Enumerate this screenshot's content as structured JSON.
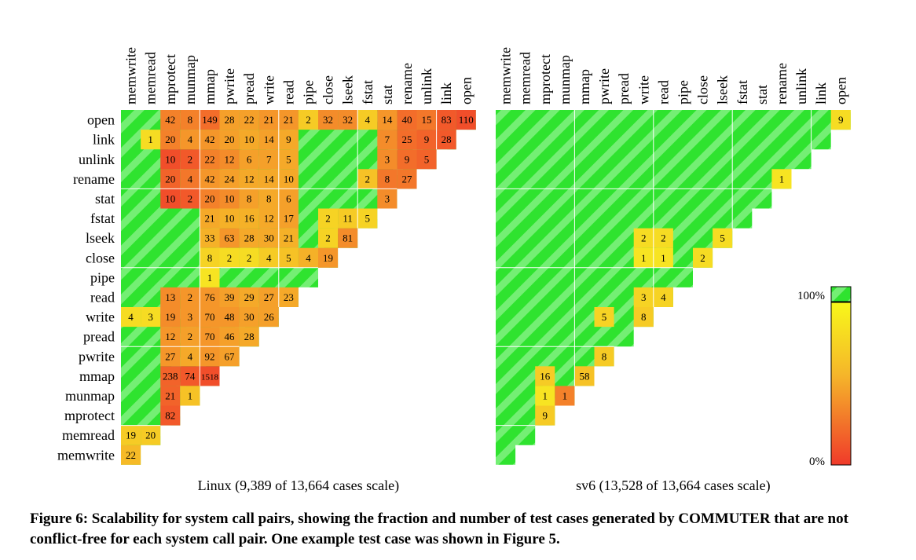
{
  "figure": {
    "caption": "Figure 6: Scalability for system call pairs, showing the fraction and number of test cases generated by COMMUTER that are not conflict-free for each system call pair. One example test case was shown in Figure 5."
  },
  "chart_data": [
    {
      "type": "heatmap",
      "title": "Linux (9,389 of 13,664 cases scale)",
      "column_labels": [
        "memwrite",
        "memread",
        "mprotect",
        "munmap",
        "mmap",
        "pwrite",
        "pread",
        "write",
        "read",
        "pipe",
        "close",
        "lseek",
        "fstat",
        "stat",
        "rename",
        "unlink",
        "link",
        "open"
      ],
      "row_labels": [
        "open",
        "link",
        "unlink",
        "rename",
        "stat",
        "fstat",
        "lseek",
        "close",
        "pipe",
        "read",
        "write",
        "pread",
        "pwrite",
        "mmap",
        "munmap",
        "mprotect",
        "memread",
        "memwrite"
      ],
      "cell_text_meaning": "number of test cases that are not conflict-free",
      "color_meaning": "fraction of test cases that scale (0% red to 100% green)",
      "cells": [
        [
          "open",
          "mprotect",
          "42",
          0.35
        ],
        [
          "open",
          "munmap",
          "8",
          0.35
        ],
        [
          "open",
          "mmap",
          "149",
          0.25
        ],
        [
          "open",
          "pwrite",
          "28",
          0.5
        ],
        [
          "open",
          "pread",
          "22",
          0.5
        ],
        [
          "open",
          "write",
          "21",
          0.45
        ],
        [
          "open",
          "read",
          "21",
          0.45
        ],
        [
          "open",
          "pipe",
          "2",
          0.75
        ],
        [
          "open",
          "close",
          "32",
          0.4
        ],
        [
          "open",
          "lseek",
          "32",
          0.4
        ],
        [
          "open",
          "fstat",
          "4",
          0.75
        ],
        [
          "open",
          "stat",
          "14",
          0.45
        ],
        [
          "open",
          "rename",
          "40",
          0.25
        ],
        [
          "open",
          "unlink",
          "15",
          0.3
        ],
        [
          "open",
          "link",
          "83",
          0.15
        ],
        [
          "open",
          "open",
          "110",
          0.1
        ],
        [
          "link",
          "memread",
          "1",
          0.85
        ],
        [
          "link",
          "mprotect",
          "20",
          0.35
        ],
        [
          "link",
          "munmap",
          "4",
          0.45
        ],
        [
          "link",
          "mmap",
          "42",
          0.45
        ],
        [
          "link",
          "pwrite",
          "20",
          0.5
        ],
        [
          "link",
          "pread",
          "10",
          0.55
        ],
        [
          "link",
          "write",
          "14",
          0.5
        ],
        [
          "link",
          "read",
          "9",
          0.55
        ],
        [
          "link",
          "stat",
          "7",
          0.4
        ],
        [
          "link",
          "rename",
          "25",
          0.25
        ],
        [
          "link",
          "unlink",
          "9",
          0.2
        ],
        [
          "link",
          "link",
          "28",
          0.15
        ],
        [
          "unlink",
          "mprotect",
          "10",
          0.1
        ],
        [
          "unlink",
          "munmap",
          "2",
          0.15
        ],
        [
          "unlink",
          "mmap",
          "22",
          0.35
        ],
        [
          "unlink",
          "pwrite",
          "12",
          0.4
        ],
        [
          "unlink",
          "pread",
          "6",
          0.5
        ],
        [
          "unlink",
          "write",
          "7",
          0.5
        ],
        [
          "unlink",
          "read",
          "5",
          0.55
        ],
        [
          "unlink",
          "stat",
          "3",
          0.4
        ],
        [
          "unlink",
          "rename",
          "9",
          0.25
        ],
        [
          "unlink",
          "unlink",
          "5",
          0.2
        ],
        [
          "rename",
          "mprotect",
          "20",
          0.2
        ],
        [
          "rename",
          "munmap",
          "4",
          0.3
        ],
        [
          "rename",
          "mmap",
          "42",
          0.45
        ],
        [
          "rename",
          "pwrite",
          "24",
          0.5
        ],
        [
          "rename",
          "pread",
          "12",
          0.55
        ],
        [
          "rename",
          "write",
          "14",
          0.55
        ],
        [
          "rename",
          "read",
          "10",
          0.55
        ],
        [
          "rename",
          "fstat",
          "2",
          0.7
        ],
        [
          "rename",
          "stat",
          "8",
          0.3
        ],
        [
          "rename",
          "rename",
          "27",
          0.3
        ],
        [
          "stat",
          "mprotect",
          "10",
          0.1
        ],
        [
          "stat",
          "munmap",
          "2",
          0.15
        ],
        [
          "stat",
          "mmap",
          "20",
          0.35
        ],
        [
          "stat",
          "pwrite",
          "10",
          0.4
        ],
        [
          "stat",
          "pread",
          "8",
          0.5
        ],
        [
          "stat",
          "write",
          "8",
          0.55
        ],
        [
          "stat",
          "read",
          "6",
          0.5
        ],
        [
          "stat",
          "stat",
          "3",
          0.4
        ],
        [
          "fstat",
          "mmap",
          "21",
          0.55
        ],
        [
          "fstat",
          "pwrite",
          "10",
          0.6
        ],
        [
          "fstat",
          "pread",
          "16",
          0.6
        ],
        [
          "fstat",
          "write",
          "12",
          0.55
        ],
        [
          "fstat",
          "read",
          "17",
          0.5
        ],
        [
          "fstat",
          "close",
          "2",
          0.8
        ],
        [
          "fstat",
          "lseek",
          "11",
          0.75
        ],
        [
          "fstat",
          "fstat",
          "5",
          0.8
        ],
        [
          "lseek",
          "mmap",
          "33",
          0.6
        ],
        [
          "lseek",
          "pwrite",
          "63",
          0.45
        ],
        [
          "lseek",
          "pread",
          "28",
          0.55
        ],
        [
          "lseek",
          "write",
          "30",
          0.55
        ],
        [
          "lseek",
          "read",
          "21",
          0.6
        ],
        [
          "lseek",
          "close",
          "2",
          0.8
        ],
        [
          "lseek",
          "lseek",
          "81",
          0.4
        ],
        [
          "close",
          "mmap",
          "8",
          0.8
        ],
        [
          "close",
          "pwrite",
          "2",
          0.85
        ],
        [
          "close",
          "pread",
          "2",
          0.85
        ],
        [
          "close",
          "write",
          "4",
          0.75
        ],
        [
          "close",
          "read",
          "5",
          0.7
        ],
        [
          "close",
          "pipe",
          "4",
          0.6
        ],
        [
          "close",
          "close",
          "19",
          0.45
        ],
        [
          "pipe",
          "mmap",
          "1",
          0.9
        ],
        [
          "read",
          "mprotect",
          "13",
          0.4
        ],
        [
          "read",
          "munmap",
          "2",
          0.45
        ],
        [
          "read",
          "mmap",
          "76",
          0.45
        ],
        [
          "read",
          "pwrite",
          "39",
          0.5
        ],
        [
          "read",
          "pread",
          "29",
          0.55
        ],
        [
          "read",
          "write",
          "27",
          0.5
        ],
        [
          "read",
          "read",
          "23",
          0.55
        ],
        [
          "write",
          "memwrite",
          "4",
          0.85
        ],
        [
          "write",
          "memread",
          "3",
          0.85
        ],
        [
          "write",
          "mprotect",
          "19",
          0.4
        ],
        [
          "write",
          "munmap",
          "3",
          0.45
        ],
        [
          "write",
          "mmap",
          "70",
          0.45
        ],
        [
          "write",
          "pwrite",
          "48",
          0.45
        ],
        [
          "write",
          "pread",
          "30",
          0.5
        ],
        [
          "write",
          "write",
          "26",
          0.5
        ],
        [
          "pread",
          "mprotect",
          "12",
          0.45
        ],
        [
          "pread",
          "munmap",
          "2",
          0.5
        ],
        [
          "pread",
          "mmap",
          "70",
          0.45
        ],
        [
          "pread",
          "pwrite",
          "46",
          0.5
        ],
        [
          "pread",
          "pread",
          "28",
          0.55
        ],
        [
          "pwrite",
          "mprotect",
          "27",
          0.45
        ],
        [
          "pwrite",
          "munmap",
          "4",
          0.55
        ],
        [
          "pwrite",
          "mmap",
          "92",
          0.45
        ],
        [
          "pwrite",
          "pwrite",
          "67",
          0.5
        ],
        [
          "mmap",
          "mprotect",
          "238",
          0.2
        ],
        [
          "mmap",
          "munmap",
          "74",
          0.15
        ],
        [
          "mmap",
          "mmap",
          "1518",
          0.1
        ],
        [
          "munmap",
          "mprotect",
          "21",
          0.2
        ],
        [
          "munmap",
          "munmap",
          "1",
          0.7
        ],
        [
          "mprotect",
          "mprotect",
          "82",
          0.15
        ],
        [
          "memread",
          "memwrite",
          "19",
          0.75
        ],
        [
          "memread",
          "memread",
          "20",
          0.75
        ],
        [
          "memwrite",
          "memwrite",
          "22",
          0.65
        ]
      ]
    },
    {
      "type": "heatmap",
      "title": "sv6 (13,528 of 13,664 cases scale)",
      "column_labels": [
        "memwrite",
        "memread",
        "mprotect",
        "munmap",
        "mmap",
        "pwrite",
        "pread",
        "write",
        "read",
        "pipe",
        "close",
        "lseek",
        "fstat",
        "stat",
        "rename",
        "unlink",
        "link",
        "open"
      ],
      "row_labels": [
        "open",
        "link",
        "unlink",
        "rename",
        "stat",
        "fstat",
        "lseek",
        "close",
        "pipe",
        "read",
        "write",
        "pread",
        "pwrite",
        "mmap",
        "munmap",
        "mprotect",
        "memread",
        "memwrite"
      ],
      "cell_text_meaning": "number of test cases that are not conflict-free",
      "color_meaning": "fraction of test cases that scale (0% red to 100% green)",
      "cells": [
        [
          "open",
          "open",
          "9",
          0.85
        ],
        [
          "rename",
          "rename",
          "1",
          0.9
        ],
        [
          "lseek",
          "write",
          "2",
          0.85
        ],
        [
          "lseek",
          "read",
          "2",
          0.85
        ],
        [
          "lseek",
          "lseek",
          "5",
          0.85
        ],
        [
          "close",
          "write",
          "1",
          0.9
        ],
        [
          "close",
          "read",
          "1",
          0.9
        ],
        [
          "close",
          "close",
          "2",
          0.85
        ],
        [
          "read",
          "write",
          "3",
          0.8
        ],
        [
          "read",
          "read",
          "4",
          0.8
        ],
        [
          "write",
          "pwrite",
          "5",
          0.8
        ],
        [
          "write",
          "write",
          "8",
          0.75
        ],
        [
          "pwrite",
          "pwrite",
          "8",
          0.75
        ],
        [
          "mmap",
          "mprotect",
          "16",
          0.75
        ],
        [
          "mmap",
          "mmap",
          "58",
          0.7
        ],
        [
          "munmap",
          "mprotect",
          "1",
          0.9
        ],
        [
          "munmap",
          "munmap",
          "1",
          0.35
        ],
        [
          "mprotect",
          "mprotect",
          "9",
          0.75
        ]
      ]
    }
  ],
  "legend": {
    "top_label": "100%",
    "bottom_label": "0%"
  },
  "colors": {
    "green": "#2ee62e",
    "green_stripe": "#6ff06f",
    "red": "#f03a2a",
    "orange": "#f5a02a",
    "yellow": "#f7f520",
    "grid": "#ffffff"
  }
}
